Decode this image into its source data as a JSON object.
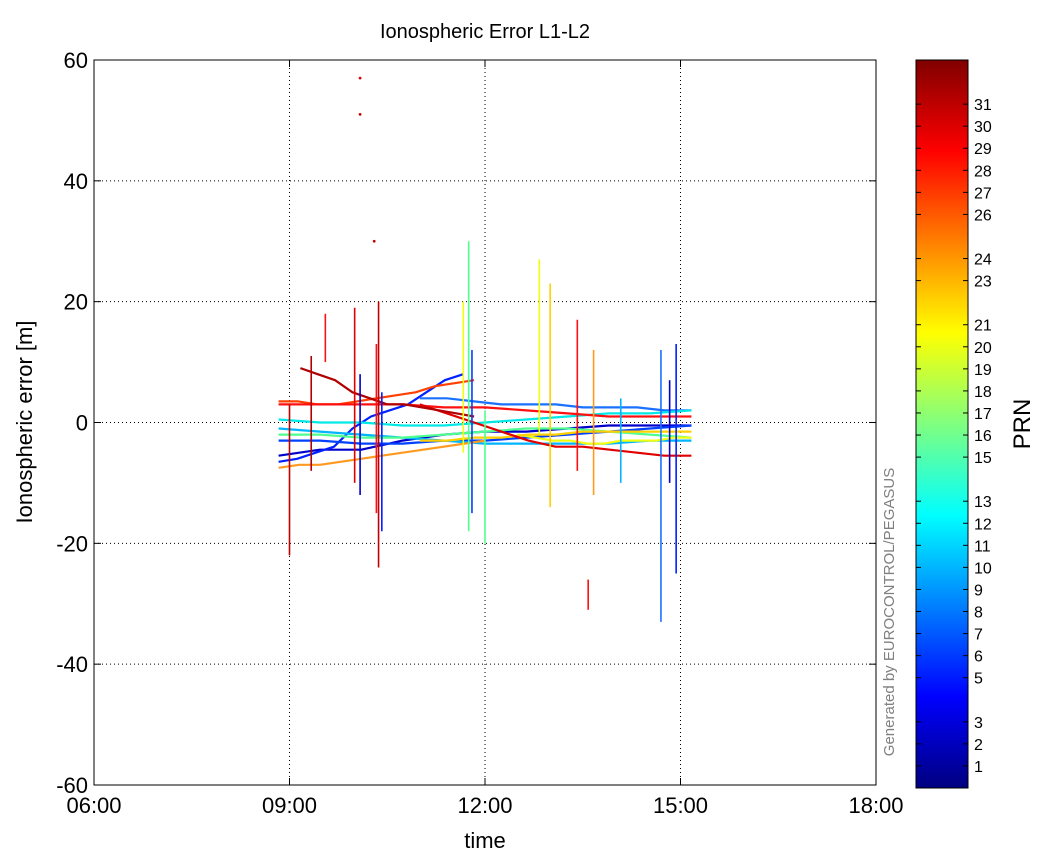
{
  "chart_data": {
    "type": "line",
    "title": "Ionospheric Error L1-L2",
    "xlabel": "time",
    "ylabel": "Ionospheric error [m]",
    "xlim": [
      "06:00",
      "18:00"
    ],
    "ylim": [
      -60,
      60
    ],
    "x_ticks": [
      "06:00",
      "09:00",
      "12:00",
      "15:00",
      "18:00"
    ],
    "y_ticks": [
      -60,
      -40,
      -20,
      0,
      20,
      40,
      60
    ],
    "grid": true,
    "grid_style": "dotted",
    "colorbar": {
      "label": "PRN",
      "colormap": "jet",
      "range": [
        0,
        33
      ],
      "ticks": [
        1,
        2,
        3,
        5,
        6,
        7,
        8,
        9,
        10,
        11,
        12,
        13,
        15,
        16,
        17,
        18,
        19,
        20,
        21,
        23,
        24,
        26,
        27,
        28,
        29,
        30,
        31
      ]
    },
    "watermark": "Generated by EUROCONTROL/PEGASUS",
    "x_unit": "hours",
    "series": [
      {
        "name": "2",
        "color": "#0000cc",
        "x_range": [
          "08:50",
          "15:10"
        ],
        "values": [
          -5.5,
          -4.5,
          -4.5,
          -3,
          -2,
          -1.5,
          -1.5,
          -1,
          -0.5,
          -0.5,
          -0.5
        ]
      },
      {
        "name": "3",
        "color": "#0020ff",
        "x_range": [
          "08:50",
          "11:40"
        ],
        "values": [
          -6.5,
          -6,
          -5,
          -4,
          -1,
          1,
          2,
          3,
          5,
          7,
          8
        ]
      },
      {
        "name": "5",
        "color": "#0040ff",
        "x_range": [
          "08:50",
          "15:10"
        ],
        "values": [
          -3,
          -3,
          -3.5,
          -3.5,
          -3,
          -3,
          -2.5,
          -2,
          -1.5,
          -1,
          -0.5
        ]
      },
      {
        "name": "8",
        "color": "#1a70ff",
        "x_range": [
          "11:00",
          "15:10"
        ],
        "values": [
          4,
          4,
          3.5,
          3,
          3,
          3,
          2.5,
          2.5,
          2.5,
          2,
          2
        ]
      },
      {
        "name": "11",
        "color": "#00b4ff",
        "x_range": [
          "08:50",
          "15:10"
        ],
        "values": [
          -1,
          -1.5,
          -2,
          -2.5,
          -3,
          -3.5,
          -3.5,
          -3.5,
          -3.5,
          -3,
          -3
        ]
      },
      {
        "name": "12",
        "color": "#00e8e8",
        "x_range": [
          "08:50",
          "15:10"
        ],
        "values": [
          0.5,
          0,
          0,
          -0.5,
          -0.5,
          0,
          0.5,
          1,
          1.5,
          1.5,
          2
        ]
      },
      {
        "name": "16",
        "color": "#50ff90",
        "x_range": [
          "08:50",
          "15:10"
        ],
        "values": [
          -2,
          -2,
          -2.5,
          -2.5,
          -2,
          -1.5,
          -1,
          -1,
          -1.5,
          -2,
          -2.5
        ]
      },
      {
        "name": "20",
        "color": "#f0ff10",
        "x_range": [
          "12:30",
          "15:10"
        ],
        "values": [
          -2,
          -2.5,
          -3,
          -3,
          -3.5,
          -3.5,
          -3,
          -3,
          -3,
          -2.5,
          -2.5
        ]
      },
      {
        "name": "21",
        "color": "#ffd000",
        "x_range": [
          "11:00",
          "15:10"
        ],
        "values": [
          -3,
          -3,
          -2.5,
          -2.5,
          -2,
          -2,
          -1.5,
          -1.5,
          -1.5,
          -1.5,
          -1.5
        ]
      },
      {
        "name": "24",
        "color": "#ff9a20",
        "x_range": [
          "08:50",
          "12:00"
        ],
        "values": [
          -7.5,
          -7,
          -7,
          -6.5,
          -6,
          -5.5,
          -5,
          -4.5,
          -4,
          -3.5,
          -3
        ]
      },
      {
        "name": "27",
        "color": "#ff4000",
        "x_range": [
          "08:50",
          "11:50"
        ],
        "values": [
          3.5,
          3.5,
          3,
          3,
          3.5,
          4,
          4.5,
          5,
          6,
          6.5,
          7
        ]
      },
      {
        "name": "29",
        "color": "#ff1010",
        "x_range": [
          "08:50",
          "15:10"
        ],
        "values": [
          3,
          3,
          3,
          3,
          2.5,
          2.5,
          2,
          1.5,
          1,
          1,
          1
        ]
      },
      {
        "name": "30",
        "color": "#e00000",
        "x_range": [
          "11:00",
          "15:10"
        ],
        "values": [
          3,
          1.5,
          0,
          -1.5,
          -3,
          -4,
          -4,
          -4.5,
          -5,
          -5.5,
          -5.5
        ]
      },
      {
        "name": "31",
        "color": "#b00000",
        "x_range": [
          "09:10",
          "11:50"
        ],
        "values": [
          9,
          8,
          7,
          5,
          4,
          3,
          3,
          2.5,
          2,
          1.5,
          1
        ]
      }
    ],
    "spikes": [
      {
        "x": "09:00",
        "y": [
          -22,
          3
        ],
        "color": "#c00000"
      },
      {
        "x": "09:20",
        "y": [
          -8,
          11
        ],
        "color": "#b00000"
      },
      {
        "x": "09:33",
        "y": [
          10,
          18
        ],
        "color": "#ff1010"
      },
      {
        "x": "10:00",
        "y": [
          -10,
          19
        ],
        "color": "#e00000"
      },
      {
        "x": "10:05",
        "y": [
          -12,
          8
        ],
        "color": "#0000cc"
      },
      {
        "x": "10:20",
        "y": [
          -15,
          13
        ],
        "color": "#ff1010"
      },
      {
        "x": "10:22",
        "y": [
          -24,
          20
        ],
        "color": "#c00000"
      },
      {
        "x": "10:25",
        "y": [
          -18,
          5
        ],
        "color": "#0020ff"
      },
      {
        "x": "11:40",
        "y": [
          -5,
          20
        ],
        "color": "#f0ff10"
      },
      {
        "x": "11:45",
        "y": [
          -18,
          30
        ],
        "color": "#50ff90"
      },
      {
        "x": "11:48",
        "y": [
          -15,
          12
        ],
        "color": "#0040ff"
      },
      {
        "x": "12:00",
        "y": [
          -20,
          2
        ],
        "color": "#50ff90"
      },
      {
        "x": "12:50",
        "y": [
          -2,
          27
        ],
        "color": "#f0ff10"
      },
      {
        "x": "13:00",
        "y": [
          -14,
          23
        ],
        "color": "#ffd000"
      },
      {
        "x": "13:25",
        "y": [
          -8,
          17
        ],
        "color": "#ff1010"
      },
      {
        "x": "13:35",
        "y": [
          -31,
          -26
        ],
        "color": "#ff1010"
      },
      {
        "x": "13:40",
        "y": [
          -12,
          12
        ],
        "color": "#ff9a20"
      },
      {
        "x": "14:05",
        "y": [
          -10,
          4
        ],
        "color": "#00b4ff"
      },
      {
        "x": "14:42",
        "y": [
          -33,
          12
        ],
        "color": "#1a70ff"
      },
      {
        "x": "14:50",
        "y": [
          -10,
          7
        ],
        "color": "#0000cc"
      },
      {
        "x": "14:56",
        "y": [
          -25,
          13
        ],
        "color": "#0020ff"
      }
    ],
    "isolated_points": [
      {
        "x": "10:05",
        "y": 57,
        "color": "#e00000"
      },
      {
        "x": "10:05",
        "y": 51,
        "color": "#c00000"
      },
      {
        "x": "10:18",
        "y": 30,
        "color": "#c00000"
      }
    ]
  }
}
